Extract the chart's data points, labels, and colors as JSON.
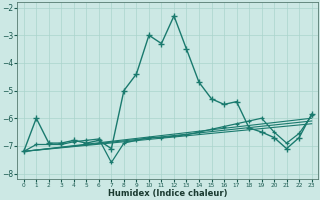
{
  "xlabel": "Humidex (Indice chaleur)",
  "bg_color": "#cce8e4",
  "line_color": "#1a7a6e",
  "grid_color": "#aad4cc",
  "xlim": [
    -0.5,
    23.5
  ],
  "ylim": [
    -8.2,
    -1.8
  ],
  "xticks": [
    0,
    1,
    2,
    3,
    4,
    5,
    6,
    7,
    8,
    9,
    10,
    11,
    12,
    13,
    14,
    15,
    16,
    17,
    18,
    19,
    20,
    21,
    22,
    23
  ],
  "yticks": [
    -8,
    -7,
    -6,
    -5,
    -4,
    -3,
    -2
  ],
  "line1_x": [
    0,
    1,
    2,
    3,
    4,
    5,
    6,
    7,
    8,
    9,
    10,
    11,
    12,
    13,
    14,
    15,
    16,
    17,
    18,
    19,
    20,
    21,
    22,
    23
  ],
  "line1_y": [
    -7.2,
    -6.0,
    -6.9,
    -6.9,
    -6.8,
    -6.9,
    -6.8,
    -7.1,
    -5.0,
    -4.4,
    -3.0,
    -3.3,
    -2.3,
    -3.5,
    -4.7,
    -5.3,
    -5.5,
    -5.4,
    -6.35,
    -6.5,
    -6.7,
    -7.1,
    -6.7,
    -5.85
  ],
  "line2_x": [
    0,
    1,
    2,
    3,
    4,
    5,
    6,
    7,
    8,
    9,
    10,
    11,
    12,
    13,
    14,
    15,
    16,
    17,
    18,
    19,
    20,
    21,
    22,
    23
  ],
  "line2_y": [
    -7.2,
    -6.95,
    -6.95,
    -6.95,
    -6.85,
    -6.8,
    -6.75,
    -7.6,
    -6.9,
    -6.8,
    -6.7,
    -6.7,
    -6.65,
    -6.6,
    -6.5,
    -6.4,
    -6.3,
    -6.2,
    -6.1,
    -6.0,
    -6.5,
    -6.9,
    -6.55,
    -5.9
  ],
  "line3_x": [
    0,
    23
  ],
  "line3_y": [
    -7.2,
    -6.0
  ],
  "line4_x": [
    0,
    23
  ],
  "line4_y": [
    -7.2,
    -6.1
  ],
  "line5_x": [
    0,
    23
  ],
  "line5_y": [
    -7.2,
    -6.2
  ]
}
